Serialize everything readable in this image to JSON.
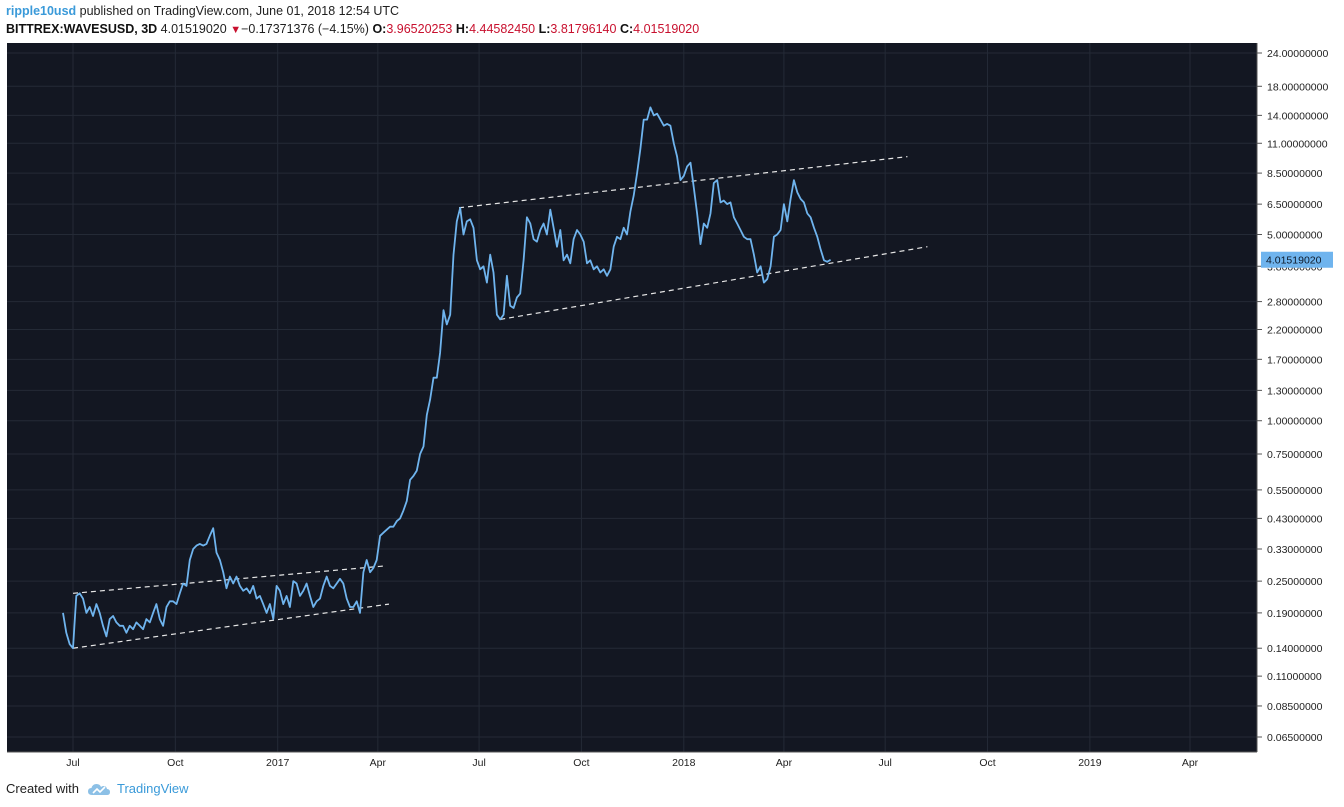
{
  "header": {
    "user": "ripple10usd",
    "published_text": "published on TradingView.com, June 01, 2018 12:54 UTC",
    "symbol": "BITTREX:WAVESUSD, 3D",
    "last": "4.01519020",
    "down_glyph": "▼",
    "change": "−0.17371376 (−4.15%)",
    "o_label": "O:",
    "o_value": "3.96520253",
    "h_label": "H:",
    "h_value": "4.44582450",
    "l_label": "L:",
    "l_value": "3.81796140",
    "c_label": "C:",
    "c_value": "4.01519020"
  },
  "footer": {
    "created_with": "Created with",
    "brand": "TradingView",
    "brand_icon": "cloud-logo-icon"
  },
  "colors": {
    "background": "#131722",
    "grid": "#242a36",
    "line": "#6fb4ee",
    "trend": "#e6e6e6",
    "accent": "#3a9ad9",
    "down": "#c8102e"
  },
  "chart_data": {
    "type": "line",
    "y_scale": "log",
    "y_ticks": [
      "24.00000000",
      "18.00000000",
      "14.00000000",
      "11.00000000",
      "8.50000000",
      "6.50000000",
      "5.00000000",
      "3.80000000",
      "2.80000000",
      "2.20000000",
      "1.70000000",
      "1.30000000",
      "1.00000000",
      "0.75000000",
      "0.55000000",
      "0.43000000",
      "0.33000000",
      "0.25000000",
      "0.19000000",
      "0.14000000",
      "0.11000000",
      "0.08500000",
      "0.06500000"
    ],
    "x_ticks": [
      "Jul",
      "Oct",
      "2017",
      "Apr",
      "Jul",
      "Oct",
      "2018",
      "Apr",
      "Jul",
      "Oct",
      "2019",
      "Apr"
    ],
    "x_tick_dates": [
      "2016-07-01",
      "2016-10-01",
      "2017-01-01",
      "2017-04-01",
      "2017-07-01",
      "2017-10-01",
      "2018-01-01",
      "2018-04-01",
      "2018-07-01",
      "2018-10-01",
      "2019-01-01",
      "2019-04-01"
    ],
    "last_value_label": "4.01519020",
    "series": [
      {
        "name": "",
        "points": [
          [
            "2016-06-22",
            0.19
          ],
          [
            "2016-06-25",
            0.16
          ],
          [
            "2016-06-28",
            0.145
          ],
          [
            "2016-07-01",
            0.14
          ],
          [
            "2016-07-04",
            0.22
          ],
          [
            "2016-07-07",
            0.225
          ],
          [
            "2016-07-10",
            0.215
          ],
          [
            "2016-07-13",
            0.19
          ],
          [
            "2016-07-16",
            0.2
          ],
          [
            "2016-07-19",
            0.185
          ],
          [
            "2016-07-22",
            0.205
          ],
          [
            "2016-07-25",
            0.19
          ],
          [
            "2016-07-28",
            0.17
          ],
          [
            "2016-07-31",
            0.155
          ],
          [
            "2016-08-03",
            0.18
          ],
          [
            "2016-08-06",
            0.185
          ],
          [
            "2016-08-09",
            0.175
          ],
          [
            "2016-08-12",
            0.17
          ],
          [
            "2016-08-15",
            0.17
          ],
          [
            "2016-08-18",
            0.16
          ],
          [
            "2016-08-21",
            0.17
          ],
          [
            "2016-08-24",
            0.165
          ],
          [
            "2016-08-27",
            0.175
          ],
          [
            "2016-08-30",
            0.17
          ],
          [
            "2016-09-02",
            0.165
          ],
          [
            "2016-09-05",
            0.18
          ],
          [
            "2016-09-08",
            0.175
          ],
          [
            "2016-09-11",
            0.19
          ],
          [
            "2016-09-14",
            0.205
          ],
          [
            "2016-09-17",
            0.18
          ],
          [
            "2016-09-20",
            0.17
          ],
          [
            "2016-09-23",
            0.2
          ],
          [
            "2016-09-26",
            0.21
          ],
          [
            "2016-09-29",
            0.21
          ],
          [
            "2016-10-02",
            0.205
          ],
          [
            "2016-10-05",
            0.225
          ],
          [
            "2016-10-08",
            0.245
          ],
          [
            "2016-10-11",
            0.24
          ],
          [
            "2016-10-14",
            0.3
          ],
          [
            "2016-10-17",
            0.33
          ],
          [
            "2016-10-20",
            0.34
          ],
          [
            "2016-10-23",
            0.345
          ],
          [
            "2016-10-26",
            0.34
          ],
          [
            "2016-10-29",
            0.345
          ],
          [
            "2016-11-01",
            0.37
          ],
          [
            "2016-11-04",
            0.395
          ],
          [
            "2016-11-07",
            0.32
          ],
          [
            "2016-11-10",
            0.3
          ],
          [
            "2016-11-13",
            0.27
          ],
          [
            "2016-11-16",
            0.235
          ],
          [
            "2016-11-19",
            0.26
          ],
          [
            "2016-11-22",
            0.245
          ],
          [
            "2016-11-25",
            0.26
          ],
          [
            "2016-11-28",
            0.24
          ],
          [
            "2016-12-01",
            0.23
          ],
          [
            "2016-12-04",
            0.235
          ],
          [
            "2016-12-07",
            0.225
          ],
          [
            "2016-12-10",
            0.24
          ],
          [
            "2016-12-13",
            0.215
          ],
          [
            "2016-12-16",
            0.22
          ],
          [
            "2016-12-19",
            0.205
          ],
          [
            "2016-12-22",
            0.19
          ],
          [
            "2016-12-25",
            0.205
          ],
          [
            "2016-12-28",
            0.18
          ],
          [
            "2016-12-31",
            0.24
          ],
          [
            "2017-01-03",
            0.23
          ],
          [
            "2017-01-06",
            0.205
          ],
          [
            "2017-01-09",
            0.22
          ],
          [
            "2017-01-12",
            0.2
          ],
          [
            "2017-01-15",
            0.25
          ],
          [
            "2017-01-18",
            0.245
          ],
          [
            "2017-01-21",
            0.22
          ],
          [
            "2017-01-24",
            0.23
          ],
          [
            "2017-01-27",
            0.245
          ],
          [
            "2017-01-30",
            0.22
          ],
          [
            "2017-02-02",
            0.2
          ],
          [
            "2017-02-05",
            0.21
          ],
          [
            "2017-02-08",
            0.215
          ],
          [
            "2017-02-11",
            0.24
          ],
          [
            "2017-02-14",
            0.26
          ],
          [
            "2017-02-17",
            0.24
          ],
          [
            "2017-02-20",
            0.235
          ],
          [
            "2017-02-23",
            0.245
          ],
          [
            "2017-02-26",
            0.255
          ],
          [
            "2017-03-01",
            0.245
          ],
          [
            "2017-03-04",
            0.215
          ],
          [
            "2017-03-07",
            0.2
          ],
          [
            "2017-03-10",
            0.2
          ],
          [
            "2017-03-13",
            0.21
          ],
          [
            "2017-03-16",
            0.19
          ],
          [
            "2017-03-19",
            0.27
          ],
          [
            "2017-03-22",
            0.3
          ],
          [
            "2017-03-25",
            0.27
          ],
          [
            "2017-03-28",
            0.28
          ],
          [
            "2017-03-31",
            0.3
          ],
          [
            "2017-04-03",
            0.37
          ],
          [
            "2017-04-06",
            0.38
          ],
          [
            "2017-04-09",
            0.39
          ],
          [
            "2017-04-12",
            0.4
          ],
          [
            "2017-04-15",
            0.4
          ],
          [
            "2017-04-18",
            0.42
          ],
          [
            "2017-04-21",
            0.43
          ],
          [
            "2017-04-24",
            0.46
          ],
          [
            "2017-04-27",
            0.5
          ],
          [
            "2017-04-30",
            0.6
          ],
          [
            "2017-05-03",
            0.62
          ],
          [
            "2017-05-06",
            0.65
          ],
          [
            "2017-05-09",
            0.75
          ],
          [
            "2017-05-12",
            0.8
          ],
          [
            "2017-05-15",
            1.05
          ],
          [
            "2017-05-18",
            1.2
          ],
          [
            "2017-05-21",
            1.45
          ],
          [
            "2017-05-24",
            1.45
          ],
          [
            "2017-05-27",
            1.8
          ],
          [
            "2017-05-30",
            2.6
          ],
          [
            "2017-06-02",
            2.3
          ],
          [
            "2017-06-05",
            2.5
          ],
          [
            "2017-06-08",
            4.2
          ],
          [
            "2017-06-11",
            5.6
          ],
          [
            "2017-06-14",
            6.3
          ],
          [
            "2017-06-17",
            5.0
          ],
          [
            "2017-06-20",
            5.6
          ],
          [
            "2017-06-23",
            5.7
          ],
          [
            "2017-06-26",
            5.3
          ],
          [
            "2017-06-29",
            4.0
          ],
          [
            "2017-07-02",
            3.7
          ],
          [
            "2017-07-05",
            3.8
          ],
          [
            "2017-07-08",
            3.3
          ],
          [
            "2017-07-11",
            4.2
          ],
          [
            "2017-07-14",
            3.6
          ],
          [
            "2017-07-17",
            2.5
          ],
          [
            "2017-07-20",
            2.4
          ],
          [
            "2017-07-23",
            2.5
          ],
          [
            "2017-07-26",
            3.5
          ],
          [
            "2017-07-29",
            2.7
          ],
          [
            "2017-08-01",
            2.65
          ],
          [
            "2017-08-04",
            2.9
          ],
          [
            "2017-08-07",
            3.0
          ],
          [
            "2017-08-10",
            4.0
          ],
          [
            "2017-08-13",
            5.8
          ],
          [
            "2017-08-16",
            5.5
          ],
          [
            "2017-08-19",
            4.8
          ],
          [
            "2017-08-22",
            4.7
          ],
          [
            "2017-08-25",
            5.2
          ],
          [
            "2017-08-28",
            5.5
          ],
          [
            "2017-08-31",
            5.0
          ],
          [
            "2017-09-03",
            6.2
          ],
          [
            "2017-09-06",
            5.3
          ],
          [
            "2017-09-09",
            4.5
          ],
          [
            "2017-09-12",
            5.2
          ],
          [
            "2017-09-15",
            4.0
          ],
          [
            "2017-09-18",
            4.2
          ],
          [
            "2017-09-21",
            3.9
          ],
          [
            "2017-09-24",
            4.8
          ],
          [
            "2017-09-27",
            5.2
          ],
          [
            "2017-09-30",
            5.0
          ],
          [
            "2017-10-03",
            4.7
          ],
          [
            "2017-10-06",
            3.9
          ],
          [
            "2017-10-09",
            4.0
          ],
          [
            "2017-10-12",
            3.7
          ],
          [
            "2017-10-15",
            3.8
          ],
          [
            "2017-10-18",
            3.6
          ],
          [
            "2017-10-21",
            3.7
          ],
          [
            "2017-10-24",
            3.5
          ],
          [
            "2017-10-27",
            3.7
          ],
          [
            "2017-10-30",
            4.5
          ],
          [
            "2017-11-02",
            4.9
          ],
          [
            "2017-11-05",
            4.8
          ],
          [
            "2017-11-08",
            5.3
          ],
          [
            "2017-11-11",
            5.0
          ],
          [
            "2017-11-14",
            6.1
          ],
          [
            "2017-11-17",
            7.0
          ],
          [
            "2017-11-20",
            8.5
          ],
          [
            "2017-11-23",
            10.5
          ],
          [
            "2017-11-26",
            13.5
          ],
          [
            "2017-11-29",
            13.5
          ],
          [
            "2017-12-02",
            15.0
          ],
          [
            "2017-12-05",
            14.0
          ],
          [
            "2017-12-08",
            14.2
          ],
          [
            "2017-12-11",
            13.5
          ],
          [
            "2017-12-14",
            12.8
          ],
          [
            "2017-12-17",
            13.0
          ],
          [
            "2017-12-20",
            12.8
          ],
          [
            "2017-12-23",
            11.0
          ],
          [
            "2017-12-26",
            9.8
          ],
          [
            "2017-12-29",
            8.0
          ],
          [
            "2018-01-01",
            8.3
          ],
          [
            "2018-01-04",
            9.0
          ],
          [
            "2018-01-07",
            9.3
          ],
          [
            "2018-01-10",
            7.5
          ],
          [
            "2018-01-13",
            6.0
          ],
          [
            "2018-01-16",
            4.6
          ],
          [
            "2018-01-19",
            5.5
          ],
          [
            "2018-01-22",
            5.3
          ],
          [
            "2018-01-25",
            6.0
          ],
          [
            "2018-01-28",
            7.8
          ],
          [
            "2018-01-31",
            8.0
          ],
          [
            "2018-02-03",
            6.6
          ],
          [
            "2018-02-06",
            6.7
          ],
          [
            "2018-02-09",
            6.5
          ],
          [
            "2018-02-12",
            6.6
          ],
          [
            "2018-02-15",
            5.8
          ],
          [
            "2018-02-18",
            5.5
          ],
          [
            "2018-02-21",
            5.2
          ],
          [
            "2018-02-24",
            4.9
          ],
          [
            "2018-02-27",
            4.8
          ],
          [
            "2018-03-02",
            4.8
          ],
          [
            "2018-03-05",
            4.2
          ],
          [
            "2018-03-08",
            3.6
          ],
          [
            "2018-03-11",
            3.8
          ],
          [
            "2018-03-14",
            3.3
          ],
          [
            "2018-03-17",
            3.4
          ],
          [
            "2018-03-20",
            3.8
          ],
          [
            "2018-03-23",
            4.9
          ],
          [
            "2018-03-26",
            5.0
          ],
          [
            "2018-03-29",
            5.2
          ],
          [
            "2018-04-01",
            6.5
          ],
          [
            "2018-04-04",
            5.6
          ],
          [
            "2018-04-07",
            6.8
          ],
          [
            "2018-04-10",
            8.0
          ],
          [
            "2018-04-13",
            7.2
          ],
          [
            "2018-04-16",
            6.8
          ],
          [
            "2018-04-19",
            6.6
          ],
          [
            "2018-04-22",
            6.0
          ],
          [
            "2018-04-25",
            5.8
          ],
          [
            "2018-04-28",
            5.3
          ],
          [
            "2018-05-01",
            4.9
          ],
          [
            "2018-05-04",
            4.4
          ],
          [
            "2018-05-07",
            4.0
          ],
          [
            "2018-05-10",
            3.95
          ],
          [
            "2018-05-13",
            4.02
          ]
        ]
      }
    ],
    "trendlines": [
      [
        [
          "2016-07-01",
          0.14
        ],
        [
          "2017-04-11",
          0.205
        ]
      ],
      [
        [
          "2016-07-01",
          0.225
        ],
        [
          "2017-04-07",
          0.285
        ]
      ],
      [
        [
          "2017-07-20",
          2.4
        ],
        [
          "2018-08-08",
          4.5
        ]
      ],
      [
        [
          "2017-06-13",
          6.3
        ],
        [
          "2018-07-21",
          9.8
        ]
      ]
    ]
  }
}
